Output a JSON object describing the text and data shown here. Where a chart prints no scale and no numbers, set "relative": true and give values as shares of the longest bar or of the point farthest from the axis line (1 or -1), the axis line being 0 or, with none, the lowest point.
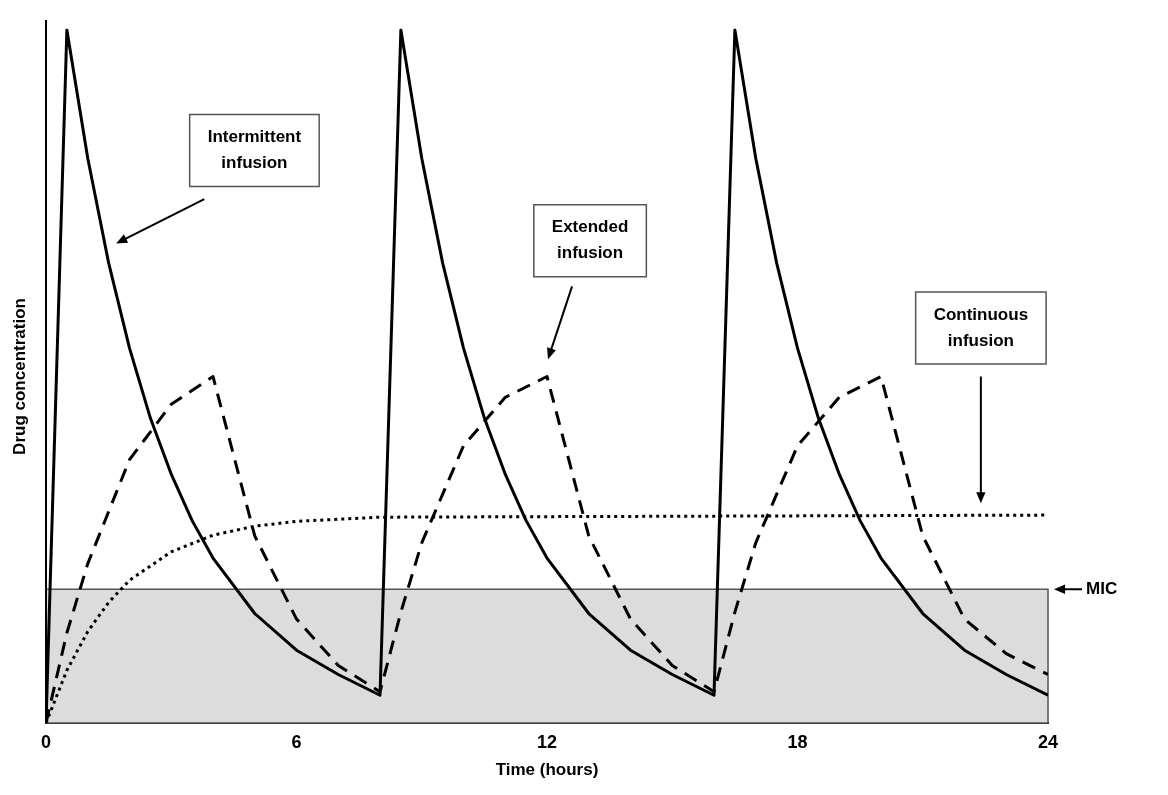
{
  "chart_data": {
    "type": "line",
    "relative": true,
    "xlabel": "Time (hours)",
    "ylabel": "Drug concentration",
    "xlim": [
      0,
      24
    ],
    "xticks": [
      0,
      6,
      12,
      18,
      24
    ],
    "series": [
      {
        "color": "#000000",
        "line_style": "solid",
        "x": [
          0,
          0.5,
          1,
          1.5,
          2,
          2.5,
          3,
          3.5,
          4,
          5,
          6,
          7,
          8,
          8.5,
          9,
          9.5,
          10,
          10.5,
          11,
          11.5,
          12,
          13,
          14,
          15,
          16,
          16.5,
          17,
          17.5,
          18,
          18.5,
          19,
          19.5,
          20,
          21,
          22,
          23,
          24
        ],
        "values": [
          0,
          1,
          0.815,
          0.664,
          0.541,
          0.44,
          0.359,
          0.292,
          0.238,
          0.158,
          0.105,
          0.07,
          0.04,
          1,
          0.815,
          0.664,
          0.541,
          0.44,
          0.359,
          0.292,
          0.238,
          0.158,
          0.105,
          0.07,
          0.04,
          1,
          0.815,
          0.664,
          0.541,
          0.44,
          0.359,
          0.292,
          0.238,
          0.158,
          0.105,
          0.07,
          0.04
        ]
      },
      {
        "color": "#000000",
        "line_style": "dashed",
        "x": [
          0,
          0.5,
          1,
          2,
          3,
          4,
          5,
          6,
          7,
          8,
          8.5,
          9,
          10,
          11,
          12,
          13,
          14,
          15,
          16,
          16.5,
          17,
          18,
          19,
          20,
          21,
          22,
          23,
          24
        ],
        "values": [
          0,
          0.13,
          0.23,
          0.38,
          0.46,
          0.5,
          0.27,
          0.15,
          0.083,
          0.045,
          0.16,
          0.26,
          0.4,
          0.47,
          0.5,
          0.27,
          0.15,
          0.083,
          0.045,
          0.16,
          0.26,
          0.4,
          0.47,
          0.5,
          0.27,
          0.15,
          0.1,
          0.07
        ]
      },
      {
        "color": "#000000",
        "line_style": "dotted",
        "x": [
          0,
          0.5,
          1,
          1.5,
          2,
          3,
          4,
          5,
          6,
          8,
          24
        ],
        "values": [
          0,
          0.076,
          0.132,
          0.174,
          0.206,
          0.247,
          0.271,
          0.284,
          0.291,
          0.297,
          0.3
        ]
      }
    ],
    "bands": [
      {
        "axis": "y",
        "from": 0,
        "to": 0.193,
        "label": "MIC",
        "color": "#dcdcdc"
      }
    ],
    "annotations": [
      "Intermittent infusion",
      "Extended infusion",
      "Continuous infusion"
    ]
  }
}
